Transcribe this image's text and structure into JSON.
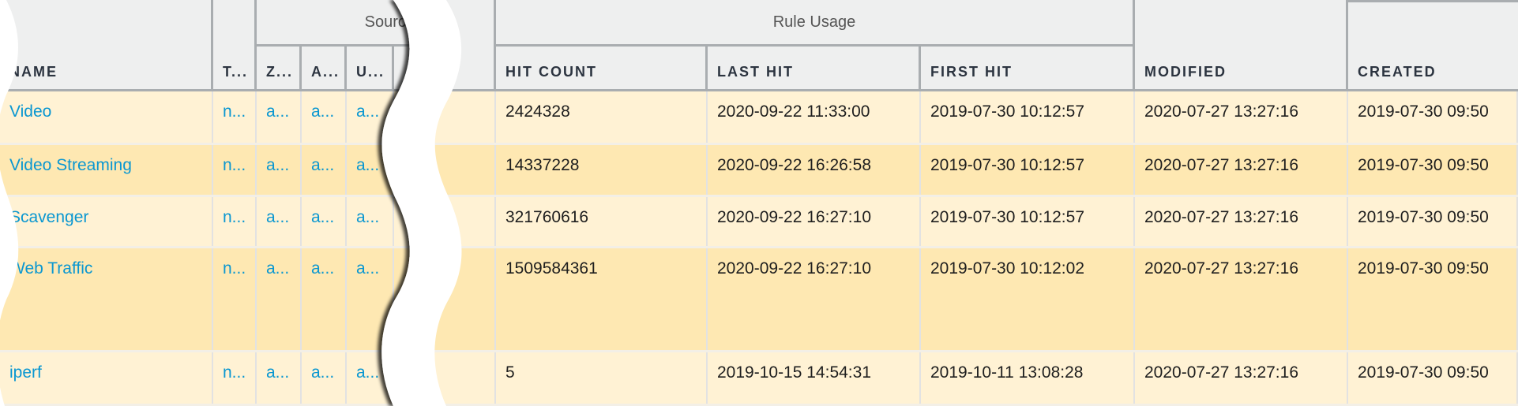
{
  "header": {
    "groups": {
      "source": "Source",
      "rule_usage": "Rule Usage"
    },
    "columns": {
      "name": "NAME",
      "type": "T...",
      "zone": "Z...",
      "address": "A...",
      "user": "U...",
      "hit_count": "HIT COUNT",
      "last_hit": "LAST HIT",
      "first_hit": "FIRST HIT",
      "modified": "MODIFIED",
      "created": "CREATED"
    }
  },
  "rows": [
    {
      "name": "Video",
      "type": "n...",
      "zone": "a...",
      "address": "a...",
      "user": "a...",
      "hit_count": "2424328",
      "last_hit": "2020-09-22 11:33:00",
      "first_hit": "2019-07-30 10:12:57",
      "modified": "2020-07-27 13:27:16",
      "created": "2019-07-30 09:50"
    },
    {
      "name": "Video Streaming",
      "type": "n...",
      "zone": "a...",
      "address": "a...",
      "user": "a...",
      "hit_count": "14337228",
      "last_hit": "2020-09-22 16:26:58",
      "first_hit": "2019-07-30 10:12:57",
      "modified": "2020-07-27 13:27:16",
      "created": "2019-07-30 09:50"
    },
    {
      "name": "Scavenger",
      "type": "n...",
      "zone": "a...",
      "address": "a...",
      "user": "a...",
      "hit_count": "321760616",
      "last_hit": "2020-09-22 16:27:10",
      "first_hit": "2019-07-30 10:12:57",
      "modified": "2020-07-27 13:27:16",
      "created": "2019-07-30 09:50"
    },
    {
      "name": "Web Traffic",
      "type": "n...",
      "zone": "a...",
      "address": "a...",
      "user": "a...",
      "hit_count": "1509584361",
      "last_hit": "2020-09-22 16:27:10",
      "first_hit": "2019-07-30 10:12:02",
      "modified": "2020-07-27 13:27:16",
      "created": "2019-07-30 09:50"
    },
    {
      "name": "iperf",
      "type": "n...",
      "zone": "a...",
      "address": "a...",
      "user": "a...",
      "hit_count": "5",
      "last_hit": "2019-10-15 14:54:31",
      "first_hit": "2019-10-11 13:08:28",
      "modified": "2020-07-27 13:27:16",
      "created": "2019-07-30 09:50"
    }
  ],
  "colors": {
    "header_bg": "#eeefef",
    "row_light": "#fff2d4",
    "row_dark": "#fee8b2",
    "link": "#0a97d1",
    "border": "#a9adb0"
  }
}
